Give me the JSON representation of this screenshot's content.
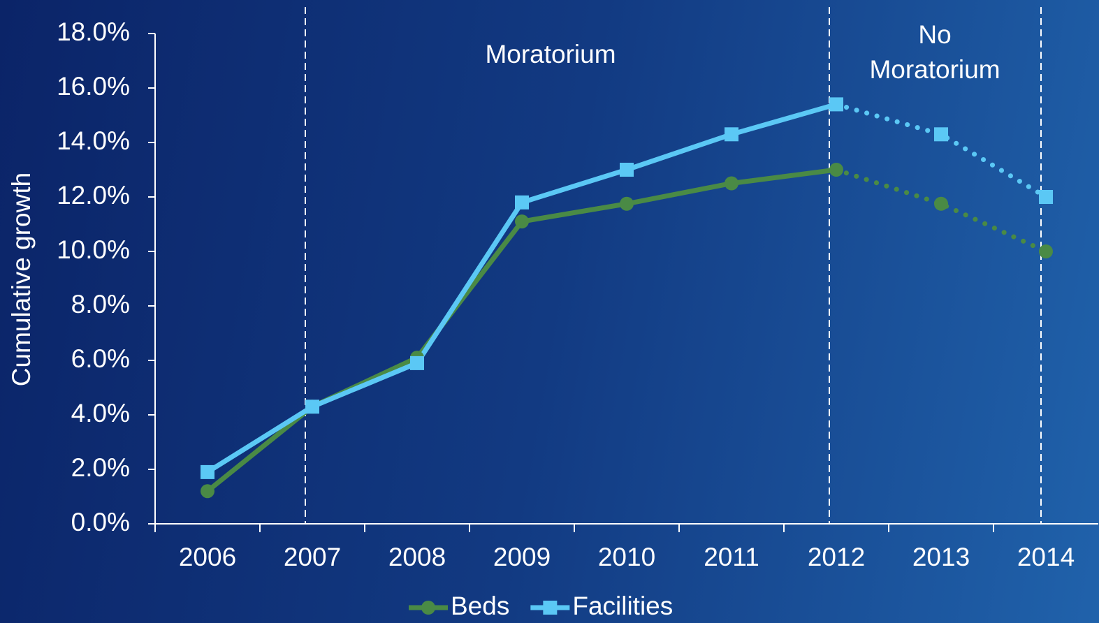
{
  "chart_data": {
    "type": "line",
    "y_axis_label": "Cumulative growth",
    "categories": [
      "2006",
      "2007",
      "2008",
      "2009",
      "2010",
      "2011",
      "2012",
      "2013",
      "2014"
    ],
    "series": [
      {
        "name": "Beds",
        "color": "#4a8a45",
        "marker": "circle",
        "values": [
          1.2,
          4.3,
          6.1,
          11.1,
          11.75,
          12.5,
          13.0,
          11.75,
          10.0
        ]
      },
      {
        "name": "Facilities",
        "color": "#5bc8f5",
        "marker": "square",
        "values": [
          1.9,
          4.3,
          5.9,
          11.8,
          13.0,
          14.3,
          15.4,
          14.3,
          12.0
        ]
      }
    ],
    "dotted_from": 6,
    "ylim": [
      0,
      18
    ],
    "yticks": [
      {
        "value": 0,
        "label": "0.0%"
      },
      {
        "value": 2,
        "label": "2.0%"
      },
      {
        "value": 4,
        "label": "4.0%"
      },
      {
        "value": 6,
        "label": "6.0%"
      },
      {
        "value": 8,
        "label": "8.0%"
      },
      {
        "value": 10,
        "label": "10.0%"
      },
      {
        "value": 12,
        "label": "12.0%"
      },
      {
        "value": 14,
        "label": "14.0%"
      },
      {
        "value": 16,
        "label": "16.0%"
      },
      {
        "value": 18,
        "label": "18.0%"
      }
    ],
    "annotations": [
      {
        "lines": [
          "Moratorium"
        ]
      },
      {
        "lines": [
          "No",
          "Moratorium"
        ]
      }
    ],
    "legend": "bottom"
  }
}
